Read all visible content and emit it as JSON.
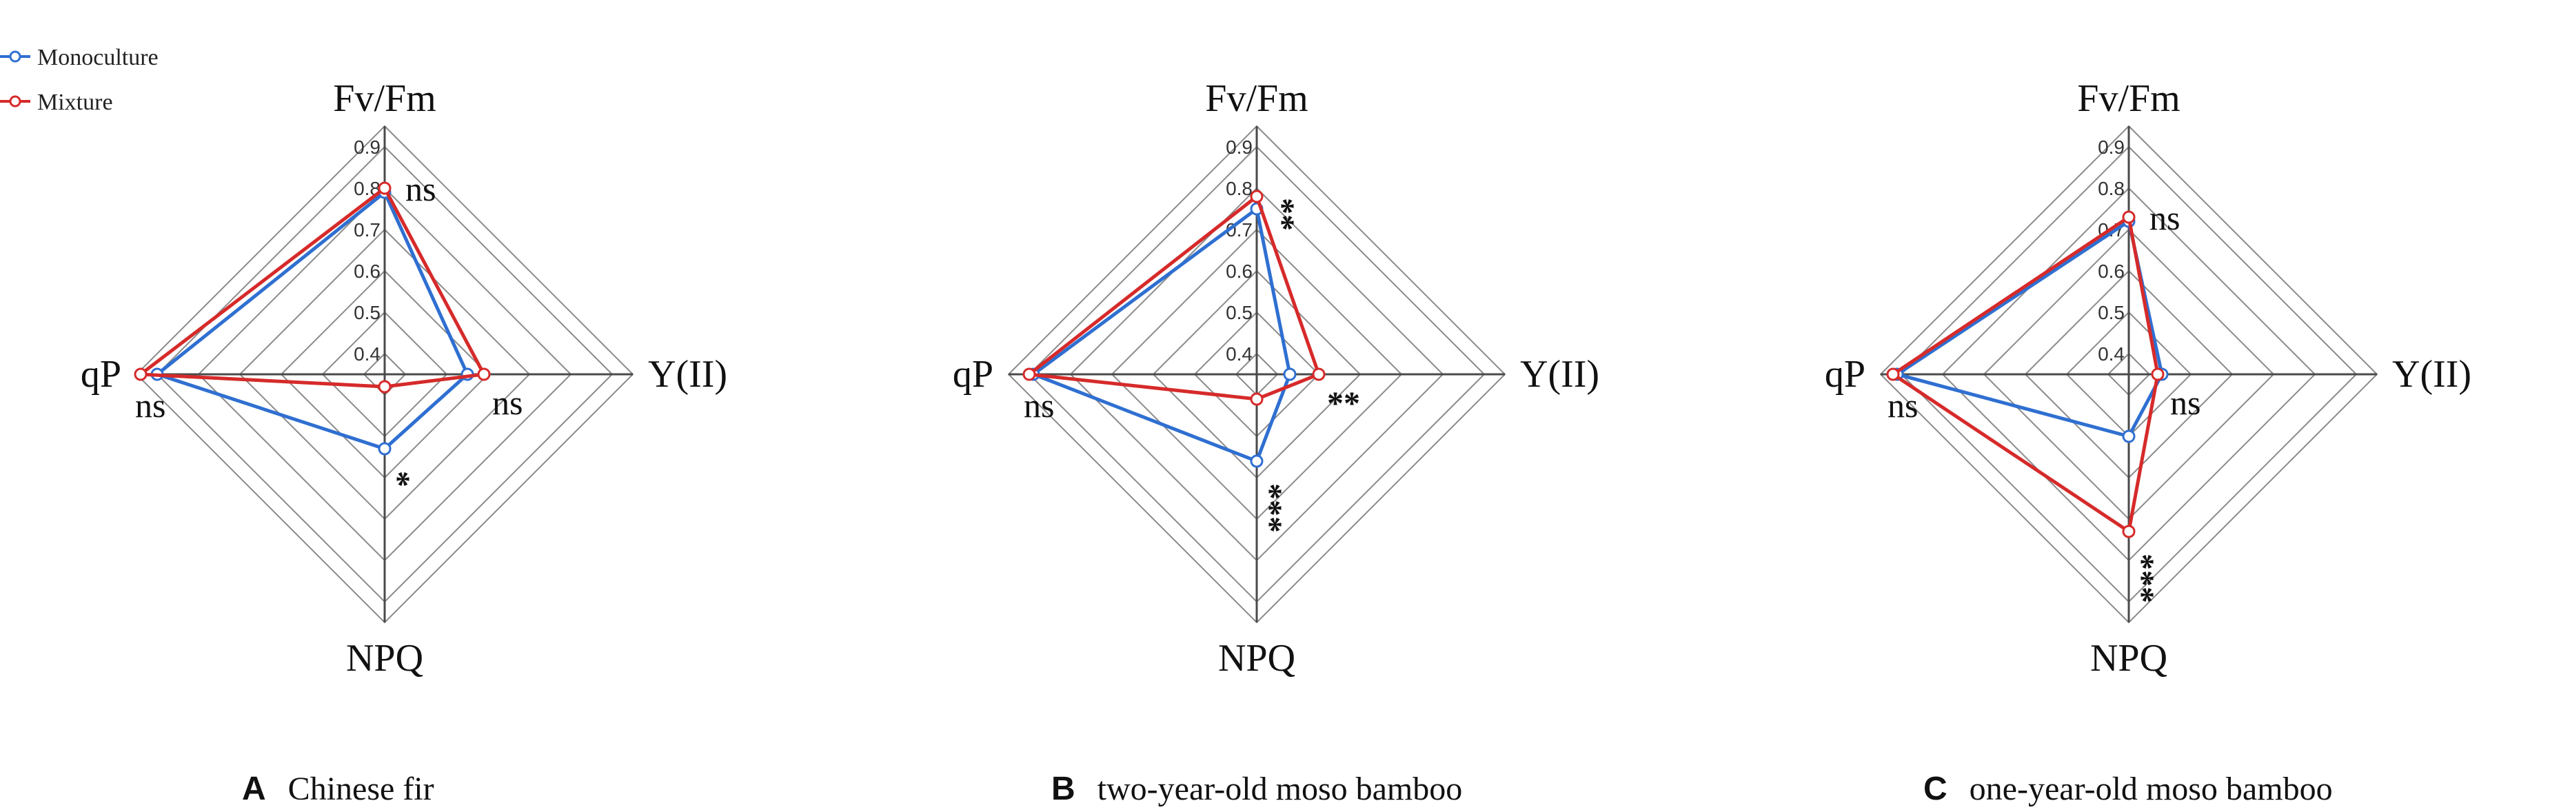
{
  "legend": {
    "position": "top-left",
    "entries": [
      {
        "label": "Monoculture",
        "color": "#2f6fd1"
      },
      {
        "label": "Mixture",
        "color": "#d62a2a"
      }
    ]
  },
  "chart_data": [
    {
      "type": "radar",
      "panel_letter": "A",
      "panel_title": "Chinese fir",
      "axes": [
        "Fv/Fm",
        "Y(II)",
        "NPQ",
        "qP"
      ],
      "tick_values": [
        0.4,
        0.5,
        0.6,
        0.7,
        0.8,
        0.9
      ],
      "tick_labels": [
        "0.4",
        "0.5",
        "0.6",
        "0.7",
        "0.8",
        "0.9"
      ],
      "range": [
        0.35,
        0.95
      ],
      "grid": true,
      "series": [
        {
          "name": "Monoculture",
          "color": "#2f6fd1",
          "values": [
            0.79,
            0.55,
            0.53,
            0.9
          ]
        },
        {
          "name": "Mixture",
          "color": "#d62a2a",
          "values": [
            0.8,
            0.59,
            0.38,
            0.94
          ]
        }
      ],
      "significance": [
        "ns",
        "ns",
        "*",
        "ns"
      ]
    },
    {
      "type": "radar",
      "panel_letter": "B",
      "panel_title": "two-year-old moso bamboo",
      "axes": [
        "Fv/Fm",
        "Y(II)",
        "NPQ",
        "qP"
      ],
      "tick_values": [
        0.4,
        0.5,
        0.6,
        0.7,
        0.8,
        0.9
      ],
      "tick_labels": [
        "0.4",
        "0.5",
        "0.6",
        "0.7",
        "0.8",
        "0.9"
      ],
      "range": [
        0.35,
        0.95
      ],
      "grid": true,
      "series": [
        {
          "name": "Monoculture",
          "color": "#2f6fd1",
          "values": [
            0.75,
            0.43,
            0.56,
            0.89
          ]
        },
        {
          "name": "Mixture",
          "color": "#d62a2a",
          "values": [
            0.78,
            0.5,
            0.41,
            0.9
          ]
        }
      ],
      "significance": [
        "**",
        "**",
        "***",
        "ns"
      ]
    },
    {
      "type": "radar",
      "panel_letter": "C",
      "panel_title": "one-year-old moso bamboo",
      "axes": [
        "Fv/Fm",
        "Y(II)",
        "NPQ",
        "qP"
      ],
      "tick_values": [
        0.4,
        0.5,
        0.6,
        0.7,
        0.8,
        0.9
      ],
      "tick_labels": [
        "0.4",
        "0.5",
        "0.6",
        "0.7",
        "0.8",
        "0.9"
      ],
      "range": [
        0.35,
        0.95
      ],
      "grid": true,
      "series": [
        {
          "name": "Monoculture",
          "color": "#2f6fd1",
          "values": [
            0.72,
            0.43,
            0.5,
            0.91
          ]
        },
        {
          "name": "Mixture",
          "color": "#d62a2a",
          "values": [
            0.73,
            0.42,
            0.73,
            0.92
          ]
        }
      ],
      "significance": [
        "ns",
        "ns",
        "***",
        "ns"
      ]
    }
  ]
}
